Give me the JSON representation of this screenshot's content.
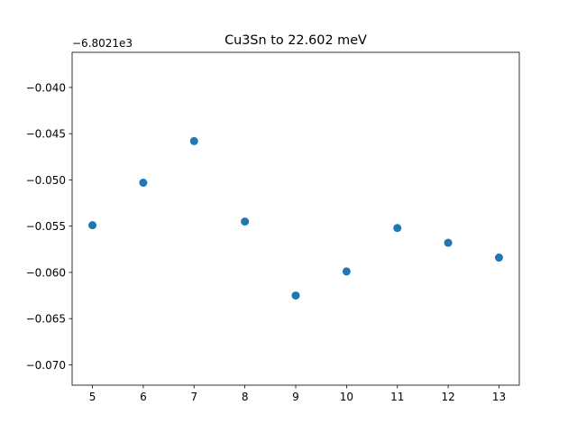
{
  "chart_data": {
    "type": "scatter",
    "title": "Cu3Sn to 22.602 meV",
    "xlabel": "",
    "ylabel": "",
    "offset_text": "−6.8021e3",
    "x": [
      5,
      6,
      7,
      8,
      9,
      10,
      11,
      12,
      13
    ],
    "y": [
      -0.0549,
      -0.0503,
      -0.0458,
      -0.0545,
      -0.0625,
      -0.0599,
      -0.0552,
      -0.0568,
      -0.0584
    ],
    "xlim": [
      4.6,
      13.4
    ],
    "ylim": [
      -0.0722,
      -0.0362
    ],
    "x_ticks": [
      5,
      6,
      7,
      8,
      9,
      10,
      11,
      12,
      13
    ],
    "x_tick_labels": [
      "5",
      "6",
      "7",
      "8",
      "9",
      "10",
      "11",
      "12",
      "13"
    ],
    "y_ticks": [
      -0.04,
      -0.045,
      -0.05,
      -0.055,
      -0.06,
      -0.065,
      -0.07
    ],
    "y_tick_labels": [
      "−0.040",
      "−0.045",
      "−0.050",
      "−0.055",
      "−0.060",
      "−0.065",
      "−0.070"
    ],
    "grid": false,
    "marker_color": "#1f77b4"
  }
}
